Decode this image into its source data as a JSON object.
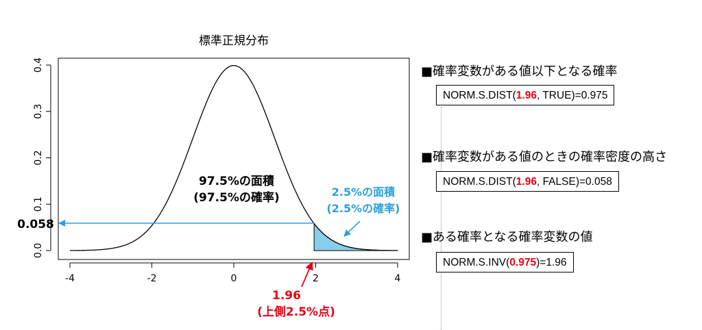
{
  "chart_data": {
    "type": "area",
    "title": "標準正規分布",
    "distribution": "standard normal",
    "xlim": [
      -4,
      4
    ],
    "ylim": [
      0,
      0.4
    ],
    "x_ticks": [
      "-4",
      "-2",
      "0",
      "2",
      "4"
    ],
    "y_ticks": [
      "0.0",
      "0.1",
      "0.2",
      "0.3",
      "0.4"
    ],
    "peak": {
      "x": 0,
      "y": 0.4
    },
    "shaded_region": {
      "from": 1.96,
      "to": 4,
      "color": "#87ceeb"
    },
    "grid": false,
    "annotations": {
      "left_area_line1": "97.5%の面積",
      "left_area_line2": "(97.5%の確率)",
      "right_area_line1": "2.5%の面積",
      "right_area_line2": "(2.5%の確率)",
      "density_value": "0.058",
      "critical_value": "1.96",
      "critical_note": "(上側2.5%点)"
    },
    "colors": {
      "curve": "#000000",
      "fill": "#87ceeb",
      "blue_arrow": "#3399dd",
      "red_arrow": "#e60012",
      "blue_text": "#2f9fd8"
    }
  },
  "info": {
    "heading1": "■確率変数がある値以下となる確率",
    "formula1": {
      "pre": "NORM.S.DIST(",
      "hl": "1.96",
      "post": ", TRUE)=0.975"
    },
    "heading2": "■確率変数がある値のときの確率密度の高さ",
    "formula2": {
      "pre": "NORM.S.DIST(",
      "hl": "1.96",
      "post": ", FALSE)=0.058"
    },
    "heading3": "■ある確率となる確率変数の値",
    "formula3": {
      "pre": "NORM.S.INV(",
      "hl": "0.975",
      "post": ")=1.96"
    }
  }
}
